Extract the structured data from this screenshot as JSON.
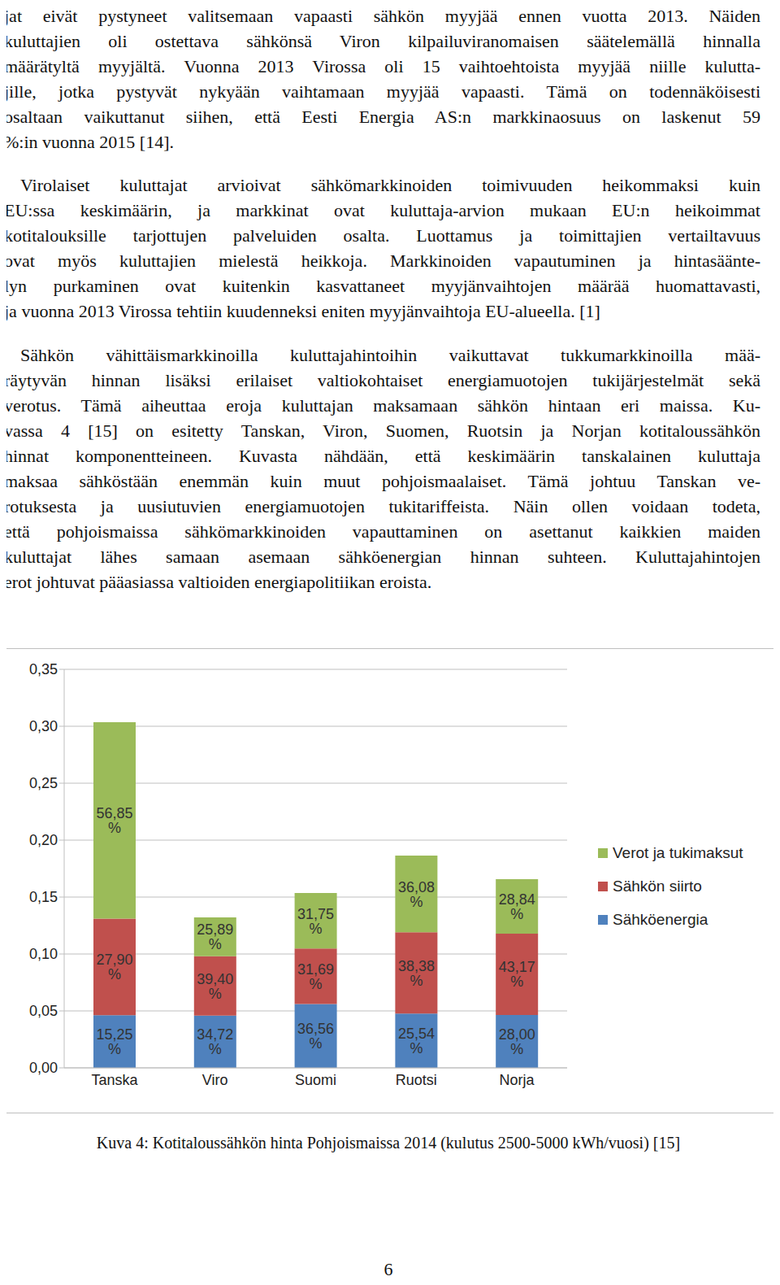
{
  "paragraphs": [
    {
      "indent": false,
      "lines": [
        "jat eivät pystyneet valitsemaan vapaasti sähkön myyjää ennen vuotta 2013. Näiden",
        "kuluttajien oli ostettava sähkönsä Viron kilpailuviranomaisen säätelemällä hinnalla",
        "määrätyltä myyjältä. Vuonna 2013 Virossa oli 15 vaihtoehtoista myyjää niille kulutta-",
        "jille, jotka pystyvät nykyään vaihtamaan myyjää vapaasti. Tämä on todennäköisesti",
        "osaltaan vaikuttanut siihen, että Eesti Energia AS:n markkinaosuus on laskenut 59",
        "%:in vuonna 2015 [14]."
      ]
    },
    {
      "indent": true,
      "lines": [
        "Virolaiset kuluttajat arvioivat sähkömarkkinoiden toimivuuden heikommaksi kuin",
        "EU:ssa keskimäärin, ja markkinat ovat kuluttaja-arvion mukaan EU:n heikoimmat",
        "kotitalouksille tarjottujen palveluiden osalta. Luottamus ja toimittajien vertailtavuus",
        "ovat myös kuluttajien mielestä heikkoja. Markkinoiden vapautuminen ja hintasäänte-",
        "lyn purkaminen ovat kuitenkin kasvattaneet myyjänvaihtojen määrää huomattavasti,",
        "ja vuonna 2013 Virossa tehtiin kuudenneksi eniten myyjänvaihtoja EU-alueella. [1]"
      ]
    },
    {
      "indent": true,
      "lines": [
        "Sähkön vähittäismarkkinoilla kuluttajahintoihin vaikuttavat tukkumarkkinoilla mää-",
        "räytyvän hinnan lisäksi erilaiset valtiokohtaiset energiamuotojen tukijärjestelmät sekä",
        "verotus. Tämä aiheuttaa eroja kuluttajan maksamaan sähkön hintaan eri maissa. Ku-",
        "vassa 4 [15] on esitetty Tanskan, Viron, Suomen, Ruotsin ja Norjan kotitaloussähkön",
        "hinnat komponentteineen. Kuvasta nähdään, että keskimäärin tanskalainen kuluttaja",
        "maksaa sähköstään enemmän kuin muut pohjoismaalaiset. Tämä johtuu Tanskan ve-",
        "rotuksesta ja uusiutuvien energiamuotojen tukitariffeista. Näin ollen voidaan todeta,",
        "että pohjoismaissa sähkömarkkinoiden vapauttaminen on asettanut kaikkien maiden",
        "kuluttajat lähes samaan asemaan sähköenergian hinnan suhteen. Kuluttajahintojen",
        "erot johtuvat pääasiassa valtioiden energiapolitiikan eroista."
      ]
    }
  ],
  "chart_data": {
    "type": "bar",
    "stacked": true,
    "grid": true,
    "legend": "right",
    "categories": [
      "Tanska",
      "Viro",
      "Suomi",
      "Ruotsi",
      "Norja"
    ],
    "series": [
      {
        "name": "Sähköenergia",
        "color": "#4f81bd",
        "values": [
          0.0463,
          0.0459,
          0.0561,
          0.0476,
          0.0464
        ],
        "share_labels": [
          "15,25 %",
          "34,72 %",
          "36,56 %",
          "25,54 %",
          "28,00 %"
        ]
      },
      {
        "name": "Sähkön siirto",
        "color": "#c0504d",
        "values": [
          0.0847,
          0.0521,
          0.0487,
          0.0715,
          0.0715
        ],
        "share_labels": [
          "27,90 %",
          "39,40 %",
          "31,69 %",
          "38,38 %",
          "43,17 %"
        ]
      },
      {
        "name": "Verot ja tukimaksut",
        "color": "#9bbb59",
        "values": [
          0.1726,
          0.0342,
          0.0488,
          0.0673,
          0.0478
        ],
        "share_labels": [
          "56,85 %",
          "25,89 %",
          "31,75 %",
          "36,08 %",
          "28,84 %"
        ]
      }
    ],
    "ylim": [
      0,
      0.35
    ],
    "yticks": [
      {
        "value": 0,
        "label": "0,00"
      },
      {
        "value": 0.05,
        "label": "0,05"
      },
      {
        "value": 0.1,
        "label": "0,10"
      },
      {
        "value": 0.15,
        "label": "0,15"
      },
      {
        "value": 0.2,
        "label": "0,20"
      },
      {
        "value": 0.25,
        "label": "0,25"
      },
      {
        "value": 0.3,
        "label": "0,30"
      },
      {
        "value": 0.35,
        "label": "0,35"
      }
    ]
  },
  "caption": "Kuva 4: Kotitaloussähkön hinta Pohjoismaissa 2014 (kulutus 2500-5000 kWh/vuosi) [15]",
  "page_number": 6
}
